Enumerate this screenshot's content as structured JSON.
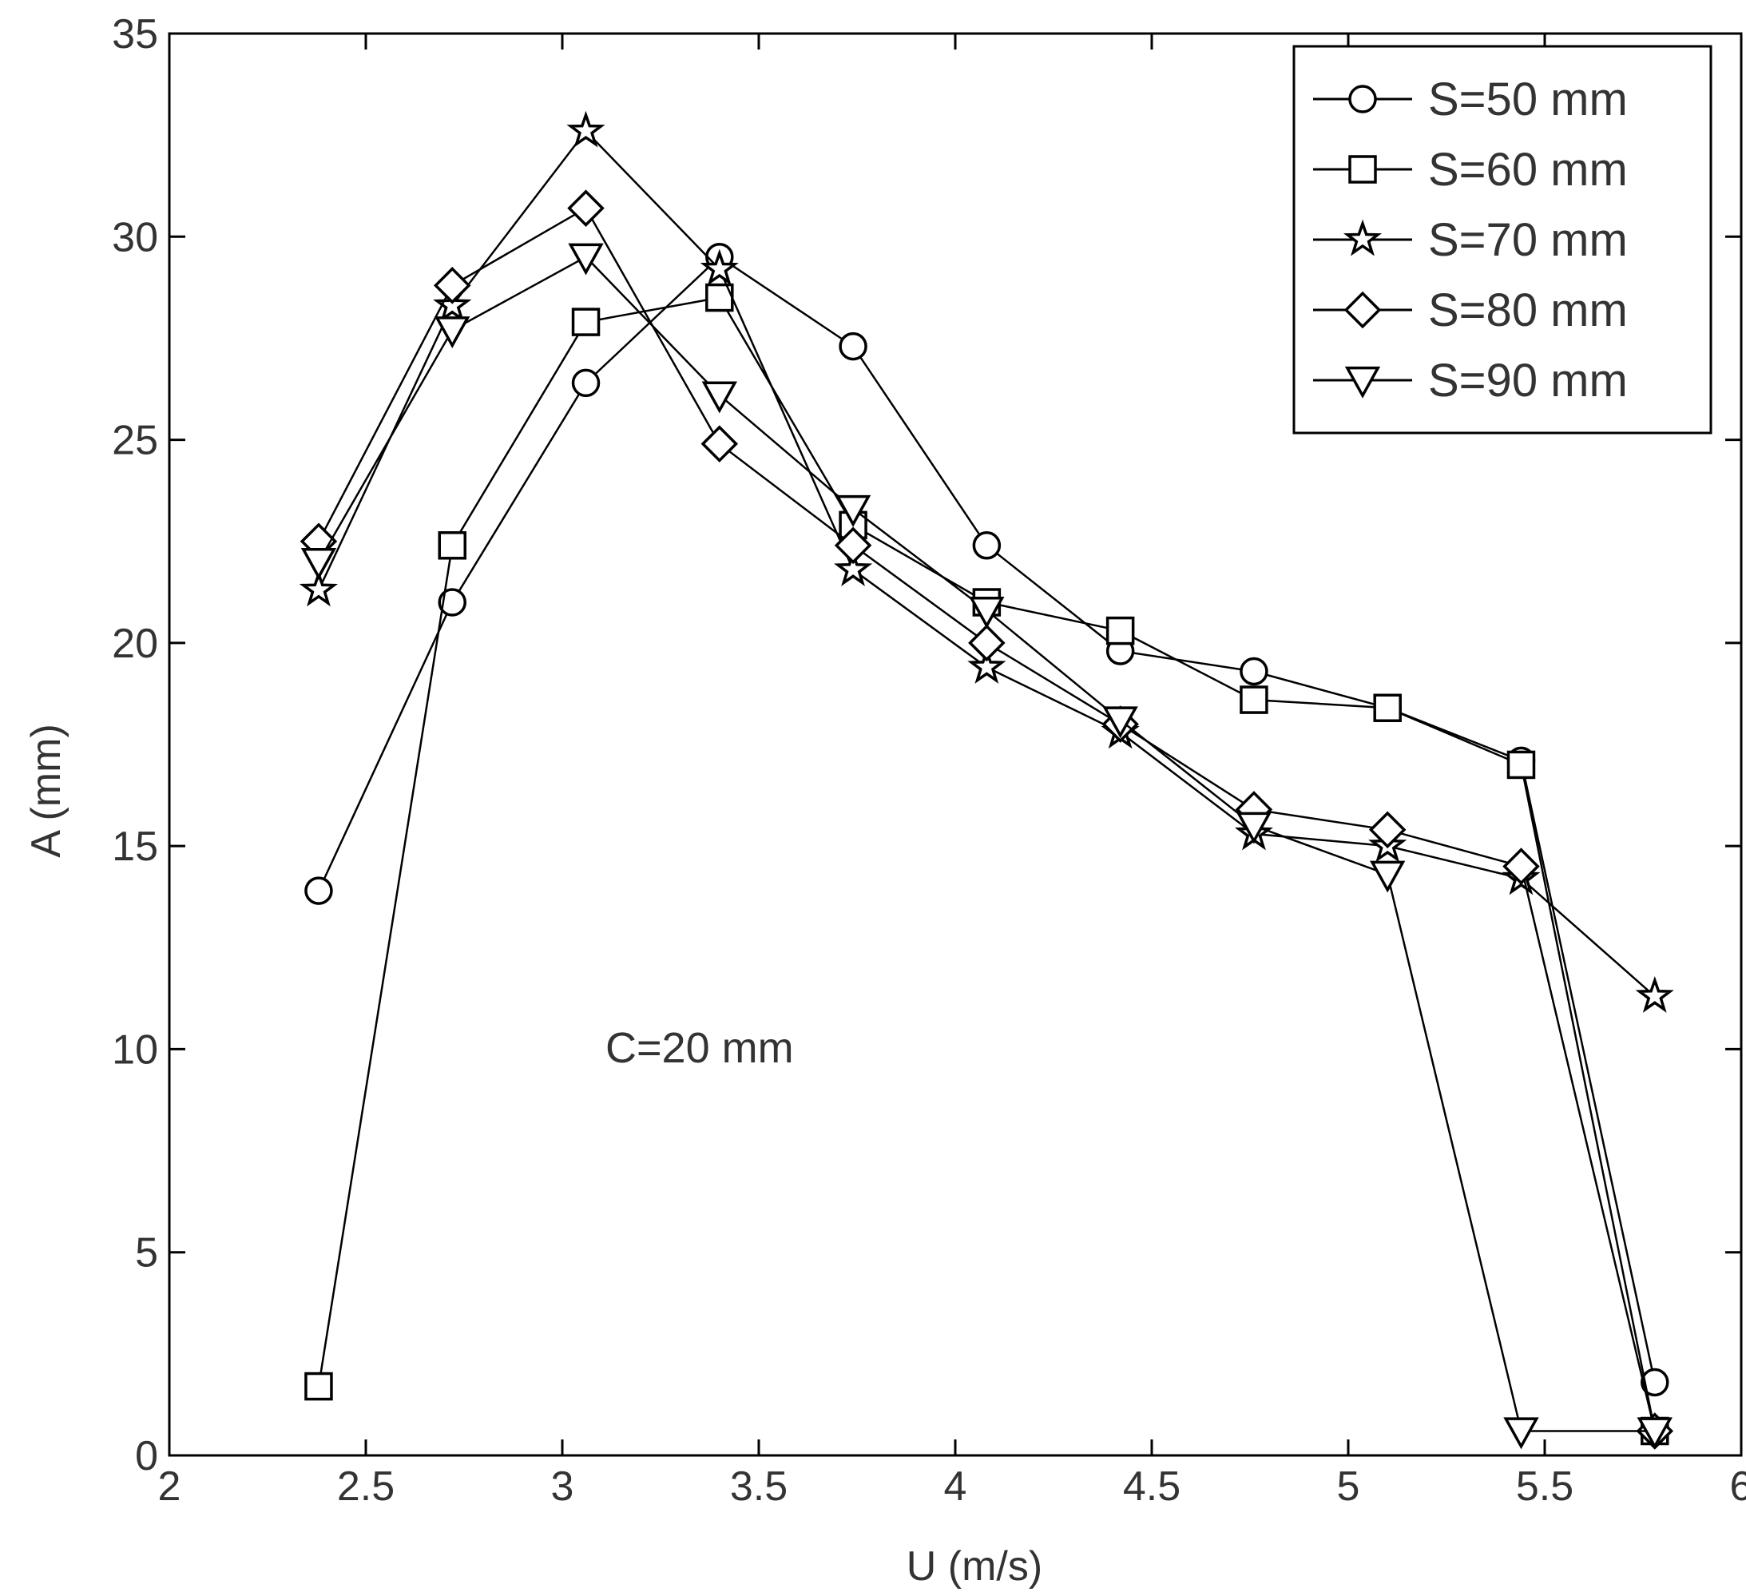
{
  "chart_data": {
    "type": "line",
    "title": "",
    "xlabel": "U (m/s)",
    "ylabel": "A (mm)",
    "xlim": [
      2,
      6
    ],
    "ylim": [
      0,
      35
    ],
    "xticks": [
      "2",
      "2.5",
      "3",
      "3.5",
      "4",
      "4.5",
      "5",
      "5.5",
      "6"
    ],
    "yticks": [
      "0",
      "5",
      "10",
      "15",
      "20",
      "25",
      "30",
      "35"
    ],
    "grid": false,
    "legend_position": "top-right",
    "annotation": "C=20 mm",
    "series": [
      {
        "name": "S=50 mm",
        "marker": "circle",
        "x": [
          2.38,
          2.72,
          3.06,
          3.4,
          3.74,
          4.08,
          4.42,
          4.76,
          5.1,
          5.44,
          5.78
        ],
        "y": [
          13.9,
          21.0,
          26.4,
          29.5,
          27.3,
          22.4,
          19.8,
          19.3,
          18.4,
          17.1,
          1.8
        ]
      },
      {
        "name": "S=60 mm",
        "marker": "square",
        "x": [
          2.38,
          2.72,
          3.06,
          3.4,
          3.74,
          4.08,
          4.42,
          4.76,
          5.1,
          5.44,
          5.78
        ],
        "y": [
          1.7,
          22.4,
          27.9,
          28.5,
          22.9,
          21.0,
          20.3,
          18.6,
          18.4,
          17.0,
          0.6
        ]
      },
      {
        "name": "S=70 mm",
        "marker": "star",
        "x": [
          2.38,
          2.72,
          3.06,
          3.4,
          3.74,
          4.08,
          4.42,
          4.76,
          5.1,
          5.44,
          5.78
        ],
        "y": [
          21.3,
          28.3,
          32.6,
          29.2,
          21.8,
          19.4,
          17.8,
          15.3,
          15.0,
          14.2,
          11.3
        ]
      },
      {
        "name": "S=80 mm",
        "marker": "diamond",
        "x": [
          2.38,
          2.72,
          3.06,
          3.4,
          3.74,
          4.08,
          4.42,
          4.76,
          5.1,
          5.44,
          5.78
        ],
        "y": [
          22.5,
          28.8,
          30.7,
          24.9,
          22.4,
          20.0,
          18.0,
          15.9,
          15.4,
          14.5,
          0.6
        ]
      },
      {
        "name": "S=90 mm",
        "marker": "triangle-down",
        "x": [
          2.38,
          2.72,
          3.06,
          3.4,
          3.74,
          4.08,
          4.42,
          4.76,
          5.1,
          5.44,
          5.78
        ],
        "y": [
          22.0,
          27.7,
          29.5,
          26.1,
          23.3,
          20.8,
          18.1,
          15.5,
          14.3,
          0.6,
          0.6
        ]
      }
    ]
  }
}
